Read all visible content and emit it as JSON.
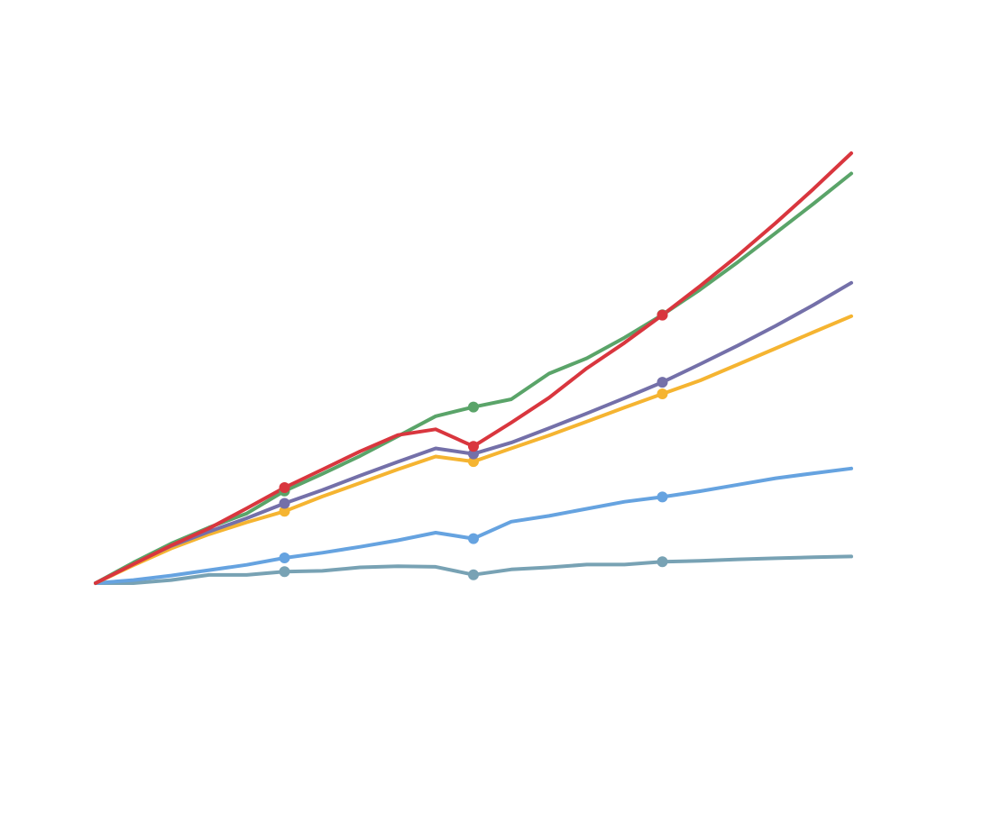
{
  "chart_data": {
    "type": "line",
    "title": "",
    "xlabel": "",
    "ylabel": "",
    "grid": false,
    "legend": "none",
    "x": [
      0,
      1,
      2,
      3,
      4,
      5,
      6,
      7,
      8,
      9,
      10,
      11,
      12,
      13,
      14,
      15,
      16,
      17,
      18,
      19,
      20
    ],
    "xlim": [
      0,
      20
    ],
    "ylim": [
      -0.4,
      1.2
    ],
    "marker_x": [
      5,
      10,
      15
    ],
    "series": [
      {
        "color": "#d9363e",
        "values": [
          0.0,
          0.0503,
          0.1,
          0.1454,
          0.1988,
          0.2538,
          0.3017,
          0.35,
          0.3935,
          0.4088,
          0.3634,
          0.4264,
          0.4925,
          0.5709,
          0.6386,
          0.7121,
          0.7895,
          0.8706,
          0.9568,
          1.0474,
          1.1421
        ]
      },
      {
        "color": "#5aa469",
        "values": [
          0.0,
          0.0547,
          0.1051,
          0.1477,
          0.1852,
          0.2448,
          0.2902,
          0.3378,
          0.3902,
          0.4434,
          0.4678,
          0.4885,
          0.5566,
          0.5973,
          0.6521,
          0.7127,
          0.7799,
          0.853,
          0.9304,
          1.0081,
          1.0882
        ]
      },
      {
        "color": "#7470a9",
        "values": [
          0.0,
          0.0518,
          0.0989,
          0.1368,
          0.1724,
          0.2118,
          0.2472,
          0.2853,
          0.3223,
          0.358,
          0.3433,
          0.3732,
          0.4115,
          0.4509,
          0.4915,
          0.5338,
          0.5819,
          0.6313,
          0.6835,
          0.7389,
          0.7978
        ]
      },
      {
        "color": "#f5b431",
        "values": [
          0.0,
          0.0475,
          0.0922,
          0.1297,
          0.1616,
          0.1908,
          0.2302,
          0.2661,
          0.3024,
          0.3364,
          0.3229,
          0.358,
          0.3924,
          0.4293,
          0.4667,
          0.5029,
          0.5386,
          0.5808,
          0.6237,
          0.6669,
          0.7091
        ]
      },
      {
        "color": "#66a3e0",
        "values": [
          0.0,
          0.0082,
          0.0202,
          0.0344,
          0.0486,
          0.0671,
          0.0806,
          0.0966,
          0.1137,
          0.1341,
          0.1182,
          0.1632,
          0.1787,
          0.1975,
          0.2162,
          0.2289,
          0.2443,
          0.2614,
          0.2786,
          0.2918,
          0.3046
        ]
      },
      {
        "color": "#78a2b4",
        "values": [
          0.0,
          0.0,
          0.0082,
          0.0219,
          0.0219,
          0.0306,
          0.0325,
          0.0418,
          0.0447,
          0.0434,
          0.0223,
          0.0364,
          0.042,
          0.0494,
          0.0494,
          0.0567,
          0.0591,
          0.0633,
          0.0661,
          0.0688,
          0.0708
        ]
      }
    ]
  }
}
